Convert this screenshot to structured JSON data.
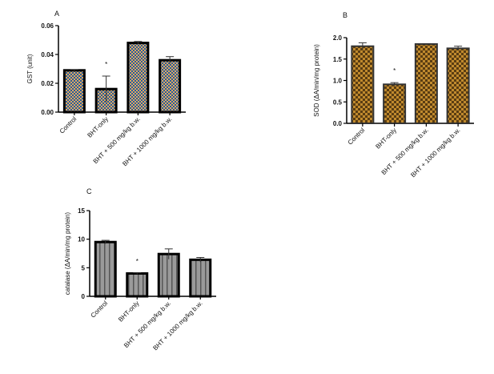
{
  "chart_data": [
    {
      "type": "bar",
      "panel": "A",
      "title": "",
      "ylabel": "GST (unit)",
      "xlabel": "",
      "categories": [
        "Control",
        "BHT-only",
        "BHT + 500 mg/kg b.w.",
        "BHT + 1000 mg/kg b.w."
      ],
      "values": [
        0.029,
        0.016,
        0.048,
        0.036
      ],
      "errors": [
        0.0005,
        0.009,
        0.001,
        0.0025
      ],
      "annotations": [
        "",
        "*",
        "",
        ""
      ],
      "ylim": [
        0,
        0.06
      ],
      "yticks": [
        "0.00",
        "0.02",
        "0.04",
        "0.06"
      ],
      "ytick_values": [
        0,
        0.02,
        0.04,
        0.06
      ],
      "colors": [
        "#2a5d9a",
        "#e0a860"
      ]
    },
    {
      "type": "bar",
      "panel": "B",
      "title": "",
      "ylabel": "SOD (ΔA/min/mg protein)",
      "xlabel": "",
      "categories": [
        "Control",
        "BHT-only",
        "BHT + 500 mg/kg b.w.",
        "BHT + 1000 mg/kg b.w."
      ],
      "values": [
        1.8,
        0.91,
        1.85,
        1.75
      ],
      "errors": [
        0.08,
        0.04,
        0.01,
        0.05
      ],
      "annotations": [
        "",
        "*",
        "",
        ""
      ],
      "ylim": [
        0,
        2.0
      ],
      "yticks": [
        "0.0",
        "0.5",
        "1.0",
        "1.5",
        "2.0"
      ],
      "ytick_values": [
        0,
        0.5,
        1.0,
        1.5,
        2.0
      ],
      "colors": [
        "#6b4a1a",
        "#c08a2e"
      ]
    },
    {
      "type": "bar",
      "panel": "C",
      "title": "",
      "ylabel": "catalase (ΔA/min/mg protein)",
      "xlabel": "",
      "categories": [
        "Control",
        "BHT-only",
        "BHT + 500 mg/kg b.w.",
        "BHT + 1000 mg/kg b.w."
      ],
      "values": [
        9.5,
        4.0,
        7.4,
        6.4
      ],
      "errors": [
        0.3,
        0.1,
        0.9,
        0.4
      ],
      "annotations": [
        "",
        "*",
        "",
        ""
      ],
      "ylim": [
        0,
        15
      ],
      "yticks": [
        "0",
        "5",
        "10",
        "15"
      ],
      "ytick_values": [
        0,
        5,
        10,
        15
      ],
      "colors": [
        "#999999",
        "#555555"
      ]
    }
  ]
}
